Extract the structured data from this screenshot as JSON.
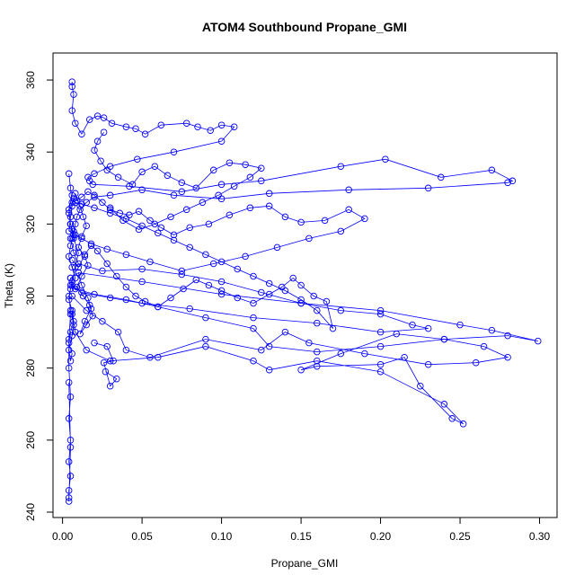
{
  "chart_data": {
    "type": "scatter",
    "title": "ATOM4 Southbound Propane_GMI",
    "xlabel": "Propane_GMI",
    "ylabel": "Theta (K)",
    "xlim": [
      -0.006,
      0.311
    ],
    "ylim": [
      238.5,
      367.5
    ],
    "xticks": [
      0.0,
      0.05,
      0.1,
      0.15,
      0.2,
      0.25,
      0.3
    ],
    "xtick_labels": [
      "0.00",
      "0.05",
      "0.10",
      "0.15",
      "0.20",
      "0.25",
      "0.30"
    ],
    "yticks": [
      240,
      260,
      280,
      300,
      320,
      340,
      360
    ],
    "ytick_labels": [
      "240",
      "260",
      "280",
      "300",
      "320",
      "340",
      "360"
    ],
    "grid": false,
    "legend": "none",
    "point_style": "open-circle",
    "connected": true,
    "color": "#0000ff",
    "series": [
      {
        "x": [
          0.006,
          0.006,
          0.007,
          0.006,
          0.008,
          0.012,
          0.017,
          0.022,
          0.026,
          0.031,
          0.04,
          0.046,
          0.052,
          0.062,
          0.078,
          0.085,
          0.093,
          0.1,
          0.108,
          0.1,
          0.07,
          0.047,
          0.03,
          0.02,
          0.016,
          0.017,
          0.019,
          0.042,
          0.075,
          0.1,
          0.125,
          0.175,
          0.203,
          0.238,
          0.27,
          0.283,
          0.28,
          0.23,
          0.18,
          0.13,
          0.1,
          0.07,
          0.05,
          0.03,
          0.02,
          0.015,
          0.011,
          0.009,
          0.008,
          0.007,
          0.006
        ],
        "y": [
          359.5,
          358.2,
          356.0,
          351.5,
          348.0,
          345.0,
          349.0,
          350.0,
          349.5,
          348.0,
          347.0,
          346.5,
          345.0,
          347.5,
          348.0,
          347.0,
          346.0,
          347.5,
          347.0,
          343.0,
          340.0,
          338.0,
          336.0,
          334.0,
          333.0,
          332.0,
          331.0,
          330.5,
          329.0,
          331.0,
          332.0,
          336.0,
          338.0,
          333.0,
          335.0,
          332.0,
          331.5,
          330.0,
          329.5,
          328.5,
          327.0,
          328.0,
          329.5,
          328.0,
          327.5,
          326.0,
          324.0,
          322.0,
          320.0,
          318.0,
          316.0
        ]
      },
      {
        "x": [
          0.005,
          0.007,
          0.01,
          0.025,
          0.05,
          0.075,
          0.1,
          0.125,
          0.15,
          0.175,
          0.2,
          0.22,
          0.23,
          0.2,
          0.16,
          0.12,
          0.08,
          0.05,
          0.03,
          0.012,
          0.006,
          0.005
        ],
        "y": [
          316.0,
          312.0,
          309.0,
          307.0,
          307.5,
          306.0,
          304.0,
          301.0,
          298.0,
          296.0,
          295.0,
          292.0,
          291.0,
          290.0,
          292.5,
          294.0,
          296.5,
          298.0,
          299.5,
          301.0,
          303.0,
          305.0
        ]
      },
      {
        "x": [
          0.005,
          0.01,
          0.05,
          0.1,
          0.15,
          0.2,
          0.25,
          0.27,
          0.299,
          0.28,
          0.24,
          0.2,
          0.16,
          0.13,
          0.12,
          0.09,
          0.06,
          0.04,
          0.02,
          0.008,
          0.005
        ],
        "y": [
          305.0,
          306.5,
          304.0,
          300.5,
          298.0,
          296.0,
          292.0,
          290.5,
          287.5,
          289.0,
          288.0,
          286.0,
          284.5,
          286.0,
          291.0,
          294.0,
          297.0,
          299.0,
          300.5,
          302.0,
          303.0
        ]
      },
      {
        "x": [
          0.006,
          0.015,
          0.025,
          0.035,
          0.04,
          0.055,
          0.09,
          0.125,
          0.14,
          0.155,
          0.19,
          0.23,
          0.26,
          0.28,
          0.265,
          0.24,
          0.21,
          0.175,
          0.15,
          0.16,
          0.2,
          0.215,
          0.225,
          0.245,
          0.252,
          0.24,
          0.2,
          0.16,
          0.13,
          0.12,
          0.09,
          0.06,
          0.03,
          0.015,
          0.008,
          0.006
        ],
        "y": [
          300.0,
          296.0,
          293.0,
          290.0,
          285.0,
          283.0,
          288.0,
          285.0,
          290.0,
          287.0,
          284.0,
          281.0,
          281.5,
          283.0,
          286.0,
          288.0,
          289.5,
          284.0,
          279.5,
          280.5,
          281.0,
          283.0,
          275.0,
          266.0,
          264.5,
          270.0,
          279.0,
          282.0,
          279.5,
          282.0,
          286.0,
          283.0,
          282.0,
          285.0,
          290.0,
          295.0
        ]
      },
      {
        "x": [
          0.005,
          0.004,
          0.004,
          0.005,
          0.004,
          0.005,
          0.004,
          0.005,
          0.004,
          0.004,
          0.004,
          0.005,
          0.004
        ],
        "y": [
          295.0,
          288.0,
          280.0,
          272.0,
          266.0,
          260.0,
          254.0,
          250.0,
          246.0,
          244.0,
          243.0,
          258.0,
          276.0
        ]
      },
      {
        "x": [
          0.004,
          0.005,
          0.006,
          0.007,
          0.009,
          0.012,
          0.016,
          0.02,
          0.025,
          0.03,
          0.036,
          0.042,
          0.048,
          0.055,
          0.062,
          0.07,
          0.08,
          0.092,
          0.105,
          0.118,
          0.13,
          0.14,
          0.15,
          0.165,
          0.18,
          0.19,
          0.175,
          0.155,
          0.135,
          0.115,
          0.095,
          0.075,
          0.055,
          0.04,
          0.028,
          0.018,
          0.012,
          0.008,
          0.006,
          0.005
        ],
        "y": [
          318.0,
          322.0,
          325.0,
          327.0,
          326.5,
          327.5,
          329.0,
          328.0,
          326.0,
          324.0,
          323.0,
          322.5,
          323.5,
          321.0,
          319.0,
          317.0,
          319.0,
          320.0,
          322.5,
          324.5,
          325.0,
          322.0,
          320.5,
          321.0,
          324.0,
          321.5,
          318.0,
          316.0,
          313.5,
          311.0,
          309.0,
          307.0,
          309.5,
          311.5,
          313.0,
          314.5,
          316.0,
          317.0,
          318.5,
          320.0
        ]
      },
      {
        "x": [
          0.026,
          0.022,
          0.02,
          0.024,
          0.028,
          0.035,
          0.044,
          0.05,
          0.058,
          0.066,
          0.075,
          0.084,
          0.095,
          0.105,
          0.115,
          0.125,
          0.118,
          0.108,
          0.098,
          0.088,
          0.078,
          0.068,
          0.058,
          0.048,
          0.038,
          0.03
        ],
        "y": [
          345.5,
          343.0,
          340.5,
          337.5,
          335.0,
          333.0,
          331.0,
          334.5,
          336.0,
          333.5,
          331.5,
          330.0,
          335.0,
          337.0,
          336.5,
          335.5,
          333.0,
          330.5,
          328.0,
          326.0,
          324.0,
          322.0,
          320.0,
          318.5,
          321.0,
          324.5
        ]
      },
      {
        "x": [
          0.006,
          0.01,
          0.014,
          0.018,
          0.022,
          0.028,
          0.034,
          0.04,
          0.046,
          0.052,
          0.06,
          0.068,
          0.076,
          0.084,
          0.092,
          0.1,
          0.11,
          0.12,
          0.13,
          0.138,
          0.145,
          0.15,
          0.158,
          0.166,
          0.17,
          0.16,
          0.15,
          0.14,
          0.13,
          0.12,
          0.11,
          0.1,
          0.09,
          0.08,
          0.07,
          0.06,
          0.05,
          0.04,
          0.03,
          0.02,
          0.012,
          0.008
        ],
        "y": [
          310.0,
          308.0,
          311.5,
          314.0,
          312.5,
          309.0,
          305.5,
          302.5,
          300.0,
          298.5,
          297.0,
          299.5,
          302.0,
          304.5,
          303.0,
          301.5,
          299.5,
          298.0,
          300.5,
          302.5,
          305.0,
          303.0,
          300.0,
          298.5,
          291.0,
          296.0,
          299.0,
          301.5,
          303.5,
          305.5,
          307.5,
          309.5,
          311.5,
          313.5,
          315.5,
          317.5,
          319.5,
          321.5,
          323.0,
          324.5,
          325.5,
          326.0
        ]
      },
      {
        "x": [
          0.004,
          0.005,
          0.006,
          0.004,
          0.005,
          0.007,
          0.005,
          0.004,
          0.006,
          0.008,
          0.005,
          0.004,
          0.006,
          0.007,
          0.005,
          0.004,
          0.006,
          0.005,
          0.004,
          0.006,
          0.007,
          0.005,
          0.004,
          0.006,
          0.008,
          0.01,
          0.007,
          0.005,
          0.004,
          0.006
        ],
        "y": [
          334.0,
          330.0,
          326.0,
          323.0,
          320.0,
          317.0,
          314.0,
          311.0,
          308.0,
          305.0,
          302.0,
          299.0,
          296.0,
          293.0,
          290.0,
          287.0,
          284.0,
          282.0,
          285.0,
          289.0,
          292.0,
          296.0,
          300.0,
          304.0,
          308.0,
          312.0,
          316.0,
          320.0,
          324.0,
          328.0
        ]
      },
      {
        "x": [
          0.008,
          0.011,
          0.013,
          0.015,
          0.012,
          0.01,
          0.014,
          0.016,
          0.012,
          0.009,
          0.013,
          0.017,
          0.019,
          0.015,
          0.011,
          0.014,
          0.018,
          0.016,
          0.012,
          0.01
        ],
        "y": [
          328.5,
          325.0,
          322.0,
          319.5,
          316.5,
          313.5,
          311.0,
          308.5,
          305.5,
          302.5,
          300.0,
          297.5,
          294.5,
          292.0,
          289.5,
          293.0,
          296.5,
          299.5,
          303.0,
          306.5
        ]
      },
      {
        "x": [
          0.02,
          0.028,
          0.032,
          0.026,
          0.03,
          0.034,
          0.027
        ],
        "y": [
          287.0,
          286.0,
          282.0,
          281.5,
          275.0,
          277.0,
          279.0
        ]
      }
    ]
  }
}
